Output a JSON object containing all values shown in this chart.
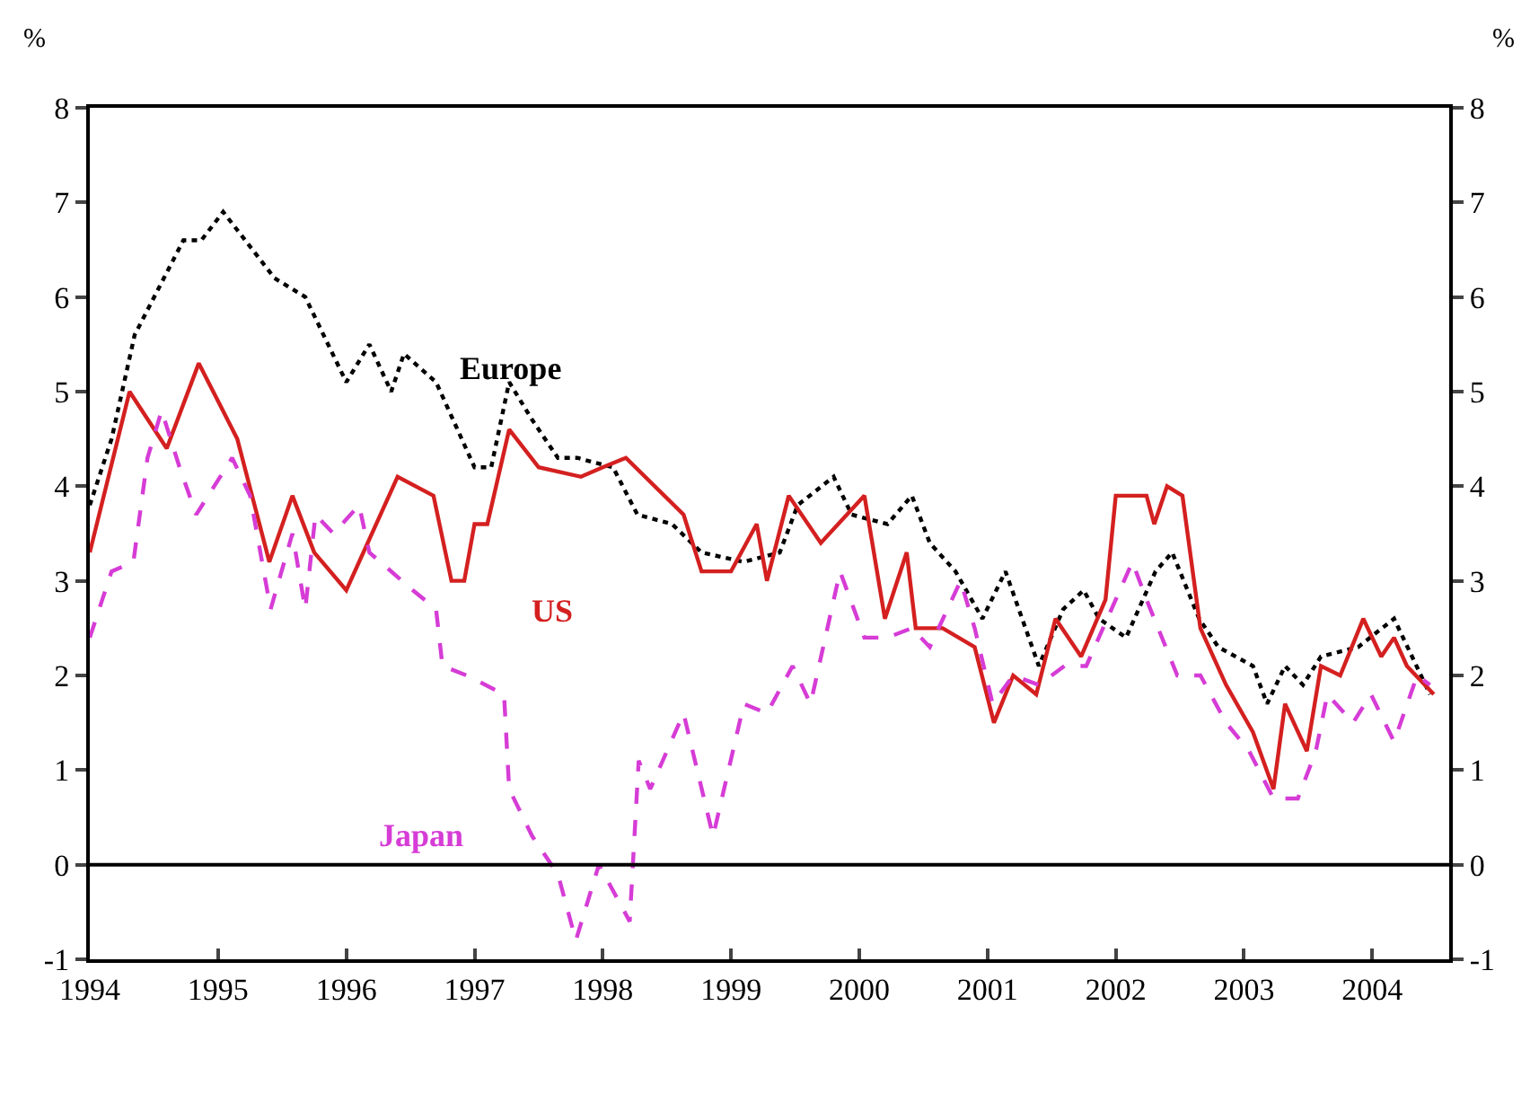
{
  "chart_data": {
    "type": "line",
    "ylabel": "%",
    "y2label": "%",
    "xlim": [
      1994,
      2004.6
    ],
    "xticks": [
      1994,
      1995,
      1996,
      1997,
      1998,
      1999,
      2000,
      2001,
      2002,
      2003,
      2004
    ],
    "ylim": [
      -1,
      8
    ],
    "yticks": [
      -1,
      0,
      1,
      2,
      3,
      4,
      5,
      6,
      7,
      8
    ],
    "y2lim": [
      -1,
      8
    ],
    "y2ticks": [
      -1,
      0,
      1,
      2,
      3,
      4,
      5,
      6,
      7,
      8
    ],
    "grid": false,
    "legend": false,
    "marker": "none",
    "ref_lines": [
      {
        "axis": "y",
        "value": 0,
        "color": "#000000",
        "line_style": "solid"
      }
    ],
    "series": [
      {
        "name": "Europe",
        "color": "#000000",
        "line_style": "dotted",
        "x": [
          1994,
          1994.17,
          1994.35,
          1994.73,
          1994.87,
          1995.04,
          1995.44,
          1995.68,
          1996,
          1996.18,
          1996.35,
          1996.45,
          1996.7,
          1997,
          1997.13,
          1997.27,
          1997.45,
          1997.65,
          1997.8,
          1998.08,
          1998.27,
          1998.54,
          1998.77,
          1999.1,
          1999.38,
          1999.52,
          1999.8,
          1999.94,
          2000.22,
          2000.41,
          2000.55,
          2000.75,
          2000.96,
          2001.14,
          2001.4,
          2001.59,
          2001.75,
          2001.87,
          2002.08,
          2002.31,
          2002.44,
          2002.65,
          2002.8,
          2003.07,
          2003.18,
          2003.32,
          2003.46,
          2003.6,
          2003.89,
          2004.17,
          2004.45
        ],
        "values": [
          3.8,
          4.5,
          5.6,
          6.6,
          6.6,
          6.9,
          6.2,
          6,
          5.1,
          5.5,
          5,
          5.4,
          5.1,
          4.2,
          4.2,
          5.1,
          4.7,
          4.3,
          4.3,
          4.2,
          3.7,
          3.6,
          3.3,
          3.2,
          3.3,
          3.8,
          4.1,
          3.7,
          3.6,
          3.9,
          3.4,
          3.1,
          2.6,
          3.1,
          2.1,
          2.7,
          2.9,
          2.6,
          2.4,
          3.1,
          3.3,
          2.6,
          2.3,
          2.1,
          1.7,
          2.1,
          1.9,
          2.2,
          2.3,
          2.6,
          1.8
        ]
      },
      {
        "name": "US",
        "color": "#d42020",
        "line_style": "solid",
        "x": [
          1994,
          1994.31,
          1994.6,
          1994.85,
          1995.15,
          1995.4,
          1995.58,
          1995.75,
          1996,
          1996.4,
          1996.68,
          1996.82,
          1996.92,
          1997,
          1997.1,
          1997.27,
          1997.5,
          1997.83,
          1998,
          1998.18,
          1998.63,
          1998.77,
          1999,
          1999.2,
          1999.28,
          1999.45,
          1999.7,
          2000.04,
          2000.2,
          2000.37,
          2000.44,
          2000.65,
          2000.9,
          2001.05,
          2001.2,
          2001.38,
          2001.53,
          2001.73,
          2001.92,
          2002,
          2002.24,
          2002.3,
          2002.4,
          2002.52,
          2002.66,
          2002.86,
          2003.07,
          2003.23,
          2003.32,
          2003.49,
          2003.6,
          2003.75,
          2003.93,
          2004.07,
          2004.17,
          2004.27,
          2004.48
        ],
        "values": [
          3.3,
          5,
          4.4,
          5.3,
          4.5,
          3.2,
          3.9,
          3.3,
          2.9,
          4.1,
          3.9,
          3,
          3,
          3.6,
          3.6,
          4.6,
          4.2,
          4.1,
          4.2,
          4.3,
          3.7,
          3.1,
          3.1,
          3.6,
          3,
          3.9,
          3.4,
          3.9,
          2.6,
          3.3,
          2.5,
          2.5,
          2.3,
          1.5,
          2,
          1.8,
          2.6,
          2.2,
          2.8,
          3.9,
          3.9,
          3.6,
          4,
          3.9,
          2.5,
          1.9,
          1.4,
          0.8,
          1.7,
          1.2,
          2.1,
          2,
          2.6,
          2.2,
          2.4,
          2.1,
          1.8
        ]
      },
      {
        "name": "Japan",
        "color": "#d63cd6",
        "line_style": "dashed",
        "x": [
          1994,
          1994.17,
          1994.34,
          1994.45,
          1994.56,
          1994.7,
          1994.83,
          1995.11,
          1995.25,
          1995.41,
          1995.58,
          1995.68,
          1995.76,
          1995.9,
          1996.1,
          1996.18,
          1996.52,
          1996.7,
          1996.75,
          1996.94,
          1997.23,
          1997.27,
          1997.45,
          1997.65,
          1997.79,
          1997.97,
          1998.21,
          1998.28,
          1998.37,
          1998.63,
          1998.86,
          1999.1,
          1999.28,
          1999.48,
          1999.62,
          1999.85,
          2000.04,
          2000.22,
          2000.41,
          2000.55,
          2000.79,
          2000.9,
          2001.04,
          2001.2,
          2001.4,
          2001.6,
          2001.77,
          2002.13,
          2002.24,
          2002.48,
          2002.66,
          2002.86,
          2003.04,
          2003.23,
          2003.42,
          2003.56,
          2003.65,
          2003.85,
          2003.99,
          2004.17,
          2004.35,
          2004.45
        ],
        "values": [
          2.4,
          3.1,
          3.2,
          4.3,
          4.8,
          4.2,
          3.7,
          4.3,
          3.9,
          2.7,
          3.5,
          2.7,
          3.7,
          3.5,
          3.8,
          3.3,
          2.9,
          2.7,
          2.1,
          2,
          1.8,
          0.8,
          0.3,
          -0.1,
          -0.8,
          0,
          -0.6,
          1.1,
          0.8,
          1.6,
          0.3,
          1.7,
          1.6,
          2.1,
          1.7,
          3.1,
          2.4,
          2.4,
          2.5,
          2.3,
          3,
          2.5,
          1.7,
          2,
          1.9,
          2.1,
          2.1,
          3.2,
          2.8,
          2,
          2,
          1.5,
          1.2,
          0.7,
          0.7,
          1.2,
          1.8,
          1.5,
          1.8,
          1.3,
          2,
          1.9
        ]
      }
    ]
  }
}
